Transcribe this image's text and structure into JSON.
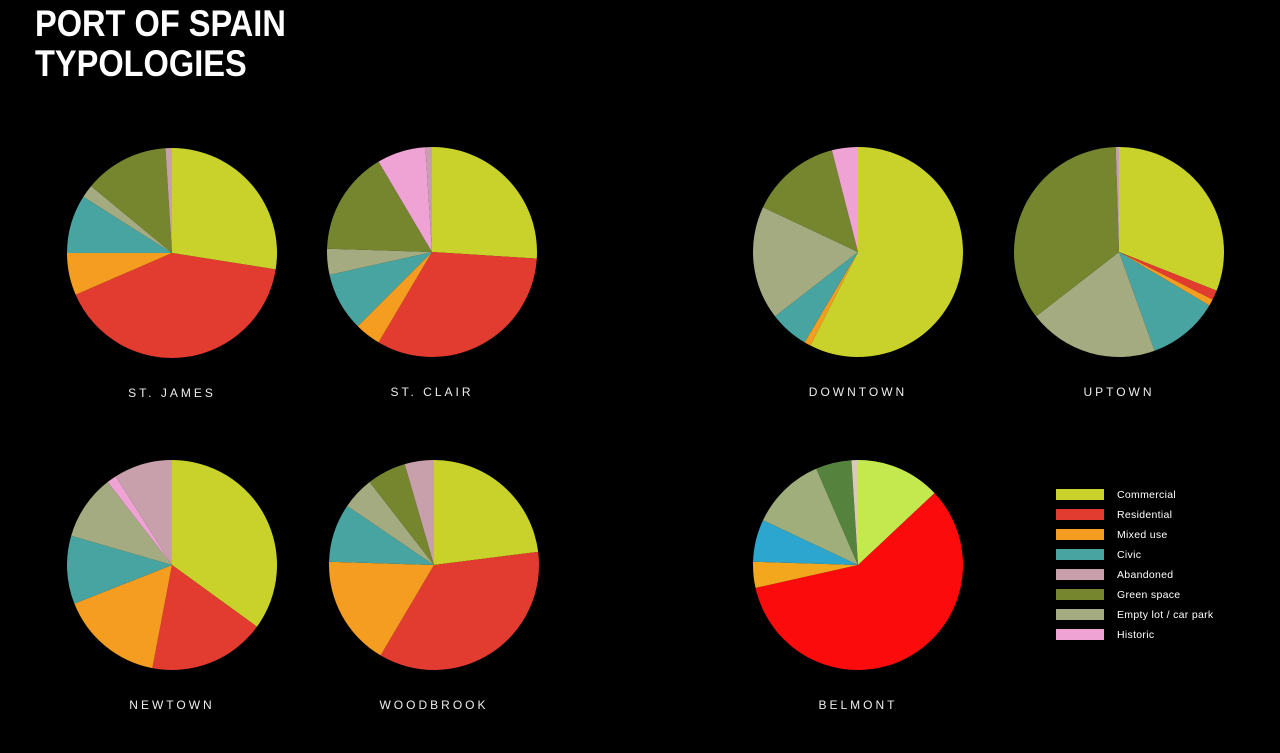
{
  "header": {
    "title_line1": "PORT OF SPAIN",
    "title_line2": "TYPOLOGIES"
  },
  "chart_data": {
    "type": "pie",
    "title": "Port of Spain Typologies",
    "value_unit": "percent",
    "legend_position": "bottom-right",
    "background_color": "#000000",
    "categories": [
      "Commercial",
      "Residential",
      "Mixed use",
      "Civic",
      "Abandoned",
      "Green space",
      "Empty lot / car park",
      "Historic"
    ],
    "colors": {
      "Commercial": "#c9d22b",
      "Residential": "#e23c30",
      "Mixed use": "#f49d20",
      "Civic": "#47a4a1",
      "Abandoned": "#c8a0ab",
      "Green space": "#75862f",
      "Empty lot / car park": "#a5ab80",
      "Historic": "#efa3d5"
    },
    "charts": [
      {
        "title": "ST. JAMES",
        "slices": [
          {
            "category": "Commercial",
            "value": 27.5
          },
          {
            "category": "Residential",
            "value": 41
          },
          {
            "category": "Mixed use",
            "value": 6.5
          },
          {
            "category": "Civic",
            "value": 9
          },
          {
            "category": "Empty lot / car park",
            "value": 2
          },
          {
            "category": "Green space",
            "value": 13
          },
          {
            "category": "Abandoned",
            "value": 1
          }
        ]
      },
      {
        "title": "ST. CLAIR",
        "slices": [
          {
            "category": "Commercial",
            "value": 26
          },
          {
            "category": "Residential",
            "value": 32.5
          },
          {
            "category": "Mixed use",
            "value": 4
          },
          {
            "category": "Civic",
            "value": 9
          },
          {
            "category": "Empty lot / car park",
            "value": 4
          },
          {
            "category": "Green space",
            "value": 16
          },
          {
            "category": "Historic",
            "value": 7.5
          },
          {
            "category": "Abandoned",
            "value": 1
          }
        ]
      },
      {
        "title": "DOWNTOWN",
        "slices": [
          {
            "category": "Commercial",
            "value": 57.5
          },
          {
            "category": "Mixed use",
            "value": 1
          },
          {
            "category": "Civic",
            "value": 6
          },
          {
            "category": "Empty lot / car park",
            "value": 17.5
          },
          {
            "category": "Green space",
            "value": 14
          },
          {
            "category": "Historic",
            "value": 4
          }
        ]
      },
      {
        "title": "UPTOWN",
        "slices": [
          {
            "category": "Commercial",
            "value": 31
          },
          {
            "category": "Residential",
            "value": 1.5
          },
          {
            "category": "Mixed use",
            "value": 1
          },
          {
            "category": "Civic",
            "value": 11
          },
          {
            "category": "Empty lot / car park",
            "value": 20
          },
          {
            "category": "Green space",
            "value": 35
          },
          {
            "category": "Abandoned",
            "value": 0.5
          }
        ]
      },
      {
        "title": "NEWTOWN",
        "slices": [
          {
            "category": "Commercial",
            "value": 35
          },
          {
            "category": "Residential",
            "value": 18
          },
          {
            "category": "Mixed use",
            "value": 16
          },
          {
            "category": "Civic",
            "value": 10.5
          },
          {
            "category": "Empty lot / car park",
            "value": 10
          },
          {
            "category": "Historic",
            "value": 1.5
          },
          {
            "category": "Abandoned",
            "value": 9
          }
        ]
      },
      {
        "title": "WOODBROOK",
        "slices": [
          {
            "category": "Commercial",
            "value": 23
          },
          {
            "category": "Residential",
            "value": 35.5
          },
          {
            "category": "Mixed use",
            "value": 17
          },
          {
            "category": "Civic",
            "value": 9
          },
          {
            "category": "Empty lot / car park",
            "value": 5
          },
          {
            "category": "Green space",
            "value": 6
          },
          {
            "category": "Abandoned",
            "value": 4.5
          }
        ]
      },
      {
        "title": "BELMONT",
        "slices": [
          {
            "category": "Commercial",
            "value": 13
          },
          {
            "category": "Residential",
            "value": 58.5
          },
          {
            "category": "Mixed use",
            "value": 4
          },
          {
            "category": "Civic",
            "value": 6.5
          },
          {
            "category": "Empty lot / car park",
            "value": 11.5
          },
          {
            "category": "Green space",
            "value": 5.5
          },
          {
            "category": "Abandoned",
            "value": 1
          }
        ],
        "color_overrides": {
          "Commercial": "#c4e94f",
          "Residential": "#fb0b0b",
          "Mixed use": "#f2a71c",
          "Civic": "#2ca6ce",
          "Empty lot / car park": "#9fae7a",
          "Green space": "#55823c",
          "Abandoned": "#d9c9bb"
        }
      }
    ]
  }
}
